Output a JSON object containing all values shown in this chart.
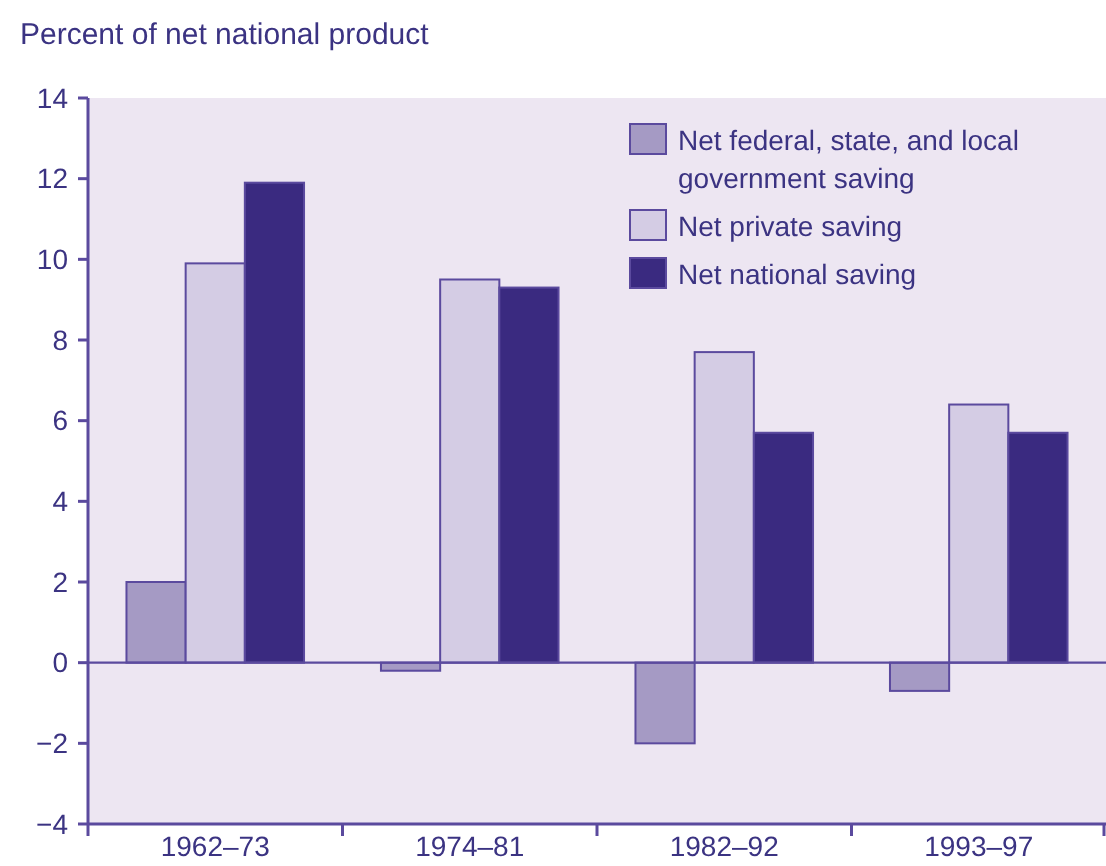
{
  "chart_data": {
    "type": "bar",
    "ylabel": "Percent of net national product",
    "categories": [
      "1962–73",
      "1974–81",
      "1982–92",
      "1993–97"
    ],
    "series": [
      {
        "name": "Net federal, state, and local government saving",
        "color": "#a59ac4",
        "values": [
          2.0,
          -0.2,
          -2.0,
          -0.7
        ]
      },
      {
        "name": "Net private saving",
        "color": "#d4cce4",
        "values": [
          9.9,
          9.5,
          7.7,
          6.4
        ]
      },
      {
        "name": "Net national saving",
        "color": "#3a2a80",
        "values": [
          11.9,
          9.3,
          5.7,
          5.7
        ]
      }
    ],
    "ylim": [
      -4,
      14
    ],
    "yticks": [
      {
        "value": -4,
        "label": "−4"
      },
      {
        "value": -2,
        "label": "−2"
      },
      0,
      2,
      4,
      6,
      8,
      10,
      12,
      14
    ],
    "ref_lines": [
      {
        "axis": "y",
        "value": 0,
        "color": "#5b4a9e"
      }
    ],
    "grid": false,
    "legend": "top right"
  }
}
